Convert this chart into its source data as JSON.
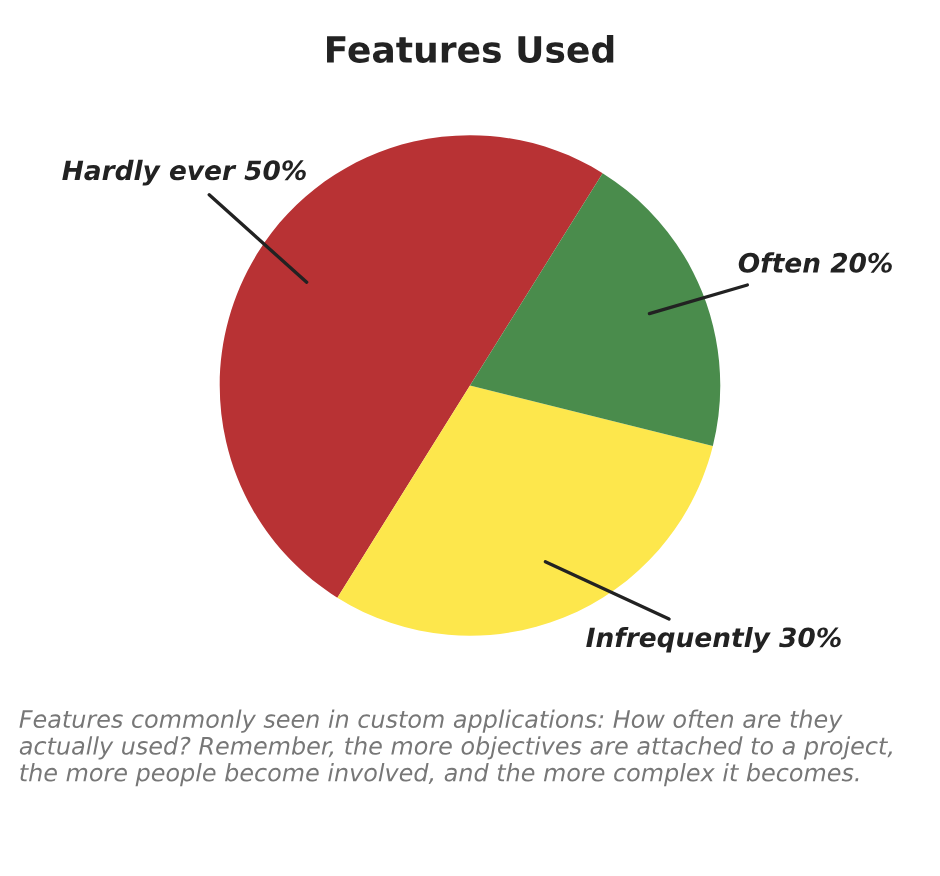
{
  "chart_data": {
    "type": "pie",
    "title": "Features Used",
    "categories": [
      "Hardly ever",
      "Infrequently",
      "Often"
    ],
    "values": [
      50,
      30,
      20
    ],
    "value_labels": [
      "50%",
      "30%",
      "20%"
    ],
    "colors": [
      "#b83234",
      "#fde74c",
      "#4a8c4c"
    ],
    "legend": false,
    "annotations": [
      "Features commonly seen in custom applications: How often are they actually used? Remember, the more objectives are attached to a project, the more people become involved, and the more complex it becomes."
    ]
  }
}
